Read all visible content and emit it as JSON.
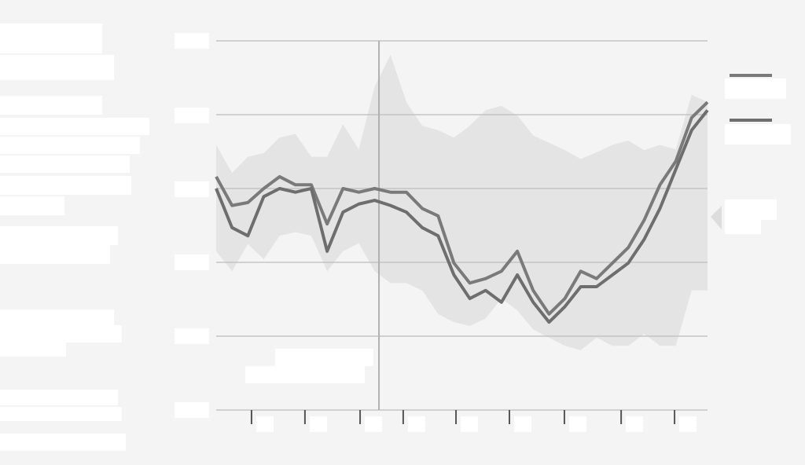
{
  "chart_data": {
    "type": "line",
    "x": [
      0,
      1,
      2,
      3,
      4,
      5,
      6,
      7,
      8,
      9,
      10,
      11,
      12,
      13,
      14,
      15,
      16,
      17,
      18,
      19,
      20,
      21,
      22,
      23,
      24,
      25,
      26,
      27,
      28,
      29,
      30,
      31
    ],
    "xlim": [
      0,
      31
    ],
    "xticks": [
      2.23,
      5.6,
      9.08,
      11.8,
      15.13,
      18.5,
      21.97,
      25.55,
      28.92
    ],
    "ylim": [
      0,
      5
    ],
    "yticks": [
      0,
      1,
      2,
      3,
      4,
      5
    ],
    "grid": true,
    "marker_x": 10.27,
    "band": {
      "color": "#e4e4e4",
      "upper": [
        3.59,
        3.21,
        3.43,
        3.48,
        3.69,
        3.74,
        3.43,
        3.43,
        3.87,
        3.53,
        4.38,
        4.81,
        4.17,
        3.85,
        3.79,
        3.69,
        3.85,
        4.06,
        4.12,
        3.99,
        3.72,
        3.62,
        3.52,
        3.4,
        3.49,
        3.59,
        3.65,
        3.52,
        3.59,
        3.53,
        4.27,
        4.17
      ],
      "lower": [
        2.15,
        1.88,
        2.25,
        2.04,
        2.36,
        2.41,
        2.36,
        1.88,
        2.15,
        2.26,
        1.88,
        1.72,
        1.72,
        1.62,
        1.3,
        1.19,
        1.14,
        1.24,
        1.51,
        1.35,
        1.09,
        0.98,
        0.87,
        0.81,
        0.98,
        0.87,
        0.87,
        1.03,
        0.87,
        0.87,
        1.62,
        1.62
      ]
    },
    "series": [
      {
        "color": "#7a7a7a",
        "values": [
          3.16,
          2.77,
          2.81,
          3.0,
          3.16,
          3.05,
          3.05,
          2.52,
          3.0,
          2.95,
          3.0,
          2.95,
          2.95,
          2.73,
          2.63,
          1.99,
          1.72,
          1.78,
          1.88,
          2.15,
          1.62,
          1.3,
          1.51,
          1.88,
          1.78,
          1.99,
          2.2,
          2.57,
          3.05,
          3.37,
          3.96,
          4.17
        ]
      },
      {
        "color": "#6e6e6e",
        "values": [
          3.0,
          2.47,
          2.36,
          2.89,
          3.0,
          2.95,
          3.0,
          2.15,
          2.68,
          2.79,
          2.84,
          2.77,
          2.68,
          2.47,
          2.36,
          1.83,
          1.51,
          1.62,
          1.46,
          1.83,
          1.46,
          1.19,
          1.4,
          1.67,
          1.67,
          1.83,
          1.99,
          2.31,
          2.73,
          3.26,
          3.79,
          4.06
        ]
      }
    ]
  }
}
